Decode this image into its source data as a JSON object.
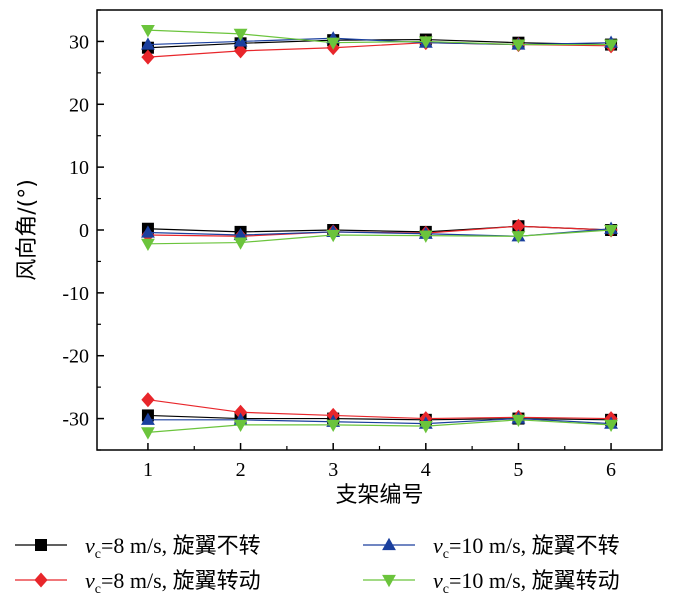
{
  "chart_data": {
    "type": "line",
    "xlabel": "支架编号",
    "ylabel": "风向角/(°)",
    "x": [
      1,
      2,
      3,
      4,
      5,
      6
    ],
    "xlim": [
      0.45,
      6.55
    ],
    "ylim": [
      -35,
      35
    ],
    "xticks": [
      1,
      2,
      3,
      4,
      5,
      6
    ],
    "yticks": [
      30,
      20,
      10,
      0,
      -10,
      -20,
      -30
    ],
    "grid": false,
    "legend_position": "bottom",
    "series": [
      {
        "key": "s1",
        "legend": {
          "v": "v",
          "sub": "c",
          "rest": "=8 m/s, 旋翼不转"
        },
        "color": "#000000",
        "marker": "square",
        "groups": [
          [
            29.0,
            29.7,
            30.2,
            30.3,
            29.8,
            29.5
          ],
          [
            0.2,
            -0.3,
            0.0,
            -0.3,
            0.6,
            0.0
          ],
          [
            -29.5,
            -30.0,
            -30.0,
            -30.2,
            -30.0,
            -30.2
          ]
        ]
      },
      {
        "key": "s2",
        "legend": {
          "v": "v",
          "sub": "c",
          "rest": "=8 m/s, 旋翼转动"
        },
        "color": "#e8262b",
        "marker": "diamond",
        "groups": [
          [
            27.5,
            28.5,
            29.0,
            29.8,
            29.5,
            29.3
          ],
          [
            -0.8,
            -1.0,
            -0.3,
            -0.5,
            0.6,
            0.0
          ],
          [
            -27.0,
            -29.0,
            -29.5,
            -30.0,
            -29.8,
            -30.0
          ]
        ]
      },
      {
        "key": "s3",
        "legend": {
          "v": "v",
          "sub": "c",
          "rest": "=10 m/s, 旋翼不转"
        },
        "color": "#1a3f9e",
        "marker": "triangle-up",
        "groups": [
          [
            29.5,
            30.0,
            30.5,
            29.8,
            29.5,
            29.8
          ],
          [
            -0.4,
            -0.8,
            -0.3,
            -0.6,
            -1.0,
            0.2
          ],
          [
            -30.2,
            -30.2,
            -30.5,
            -30.8,
            -30.0,
            -30.8
          ]
        ]
      },
      {
        "key": "s4",
        "legend": {
          "v": "v",
          "sub": "c",
          "rest": "=10 m/s, 旋翼转动"
        },
        "color": "#6bc43c",
        "marker": "triangle-down",
        "groups": [
          [
            31.8,
            31.2,
            29.8,
            30.0,
            29.5,
            29.5
          ],
          [
            -2.2,
            -2.0,
            -0.8,
            -0.9,
            -1.0,
            0.0
          ],
          [
            -32.2,
            -31.0,
            -31.0,
            -31.2,
            -30.2,
            -31.0
          ]
        ]
      }
    ]
  }
}
